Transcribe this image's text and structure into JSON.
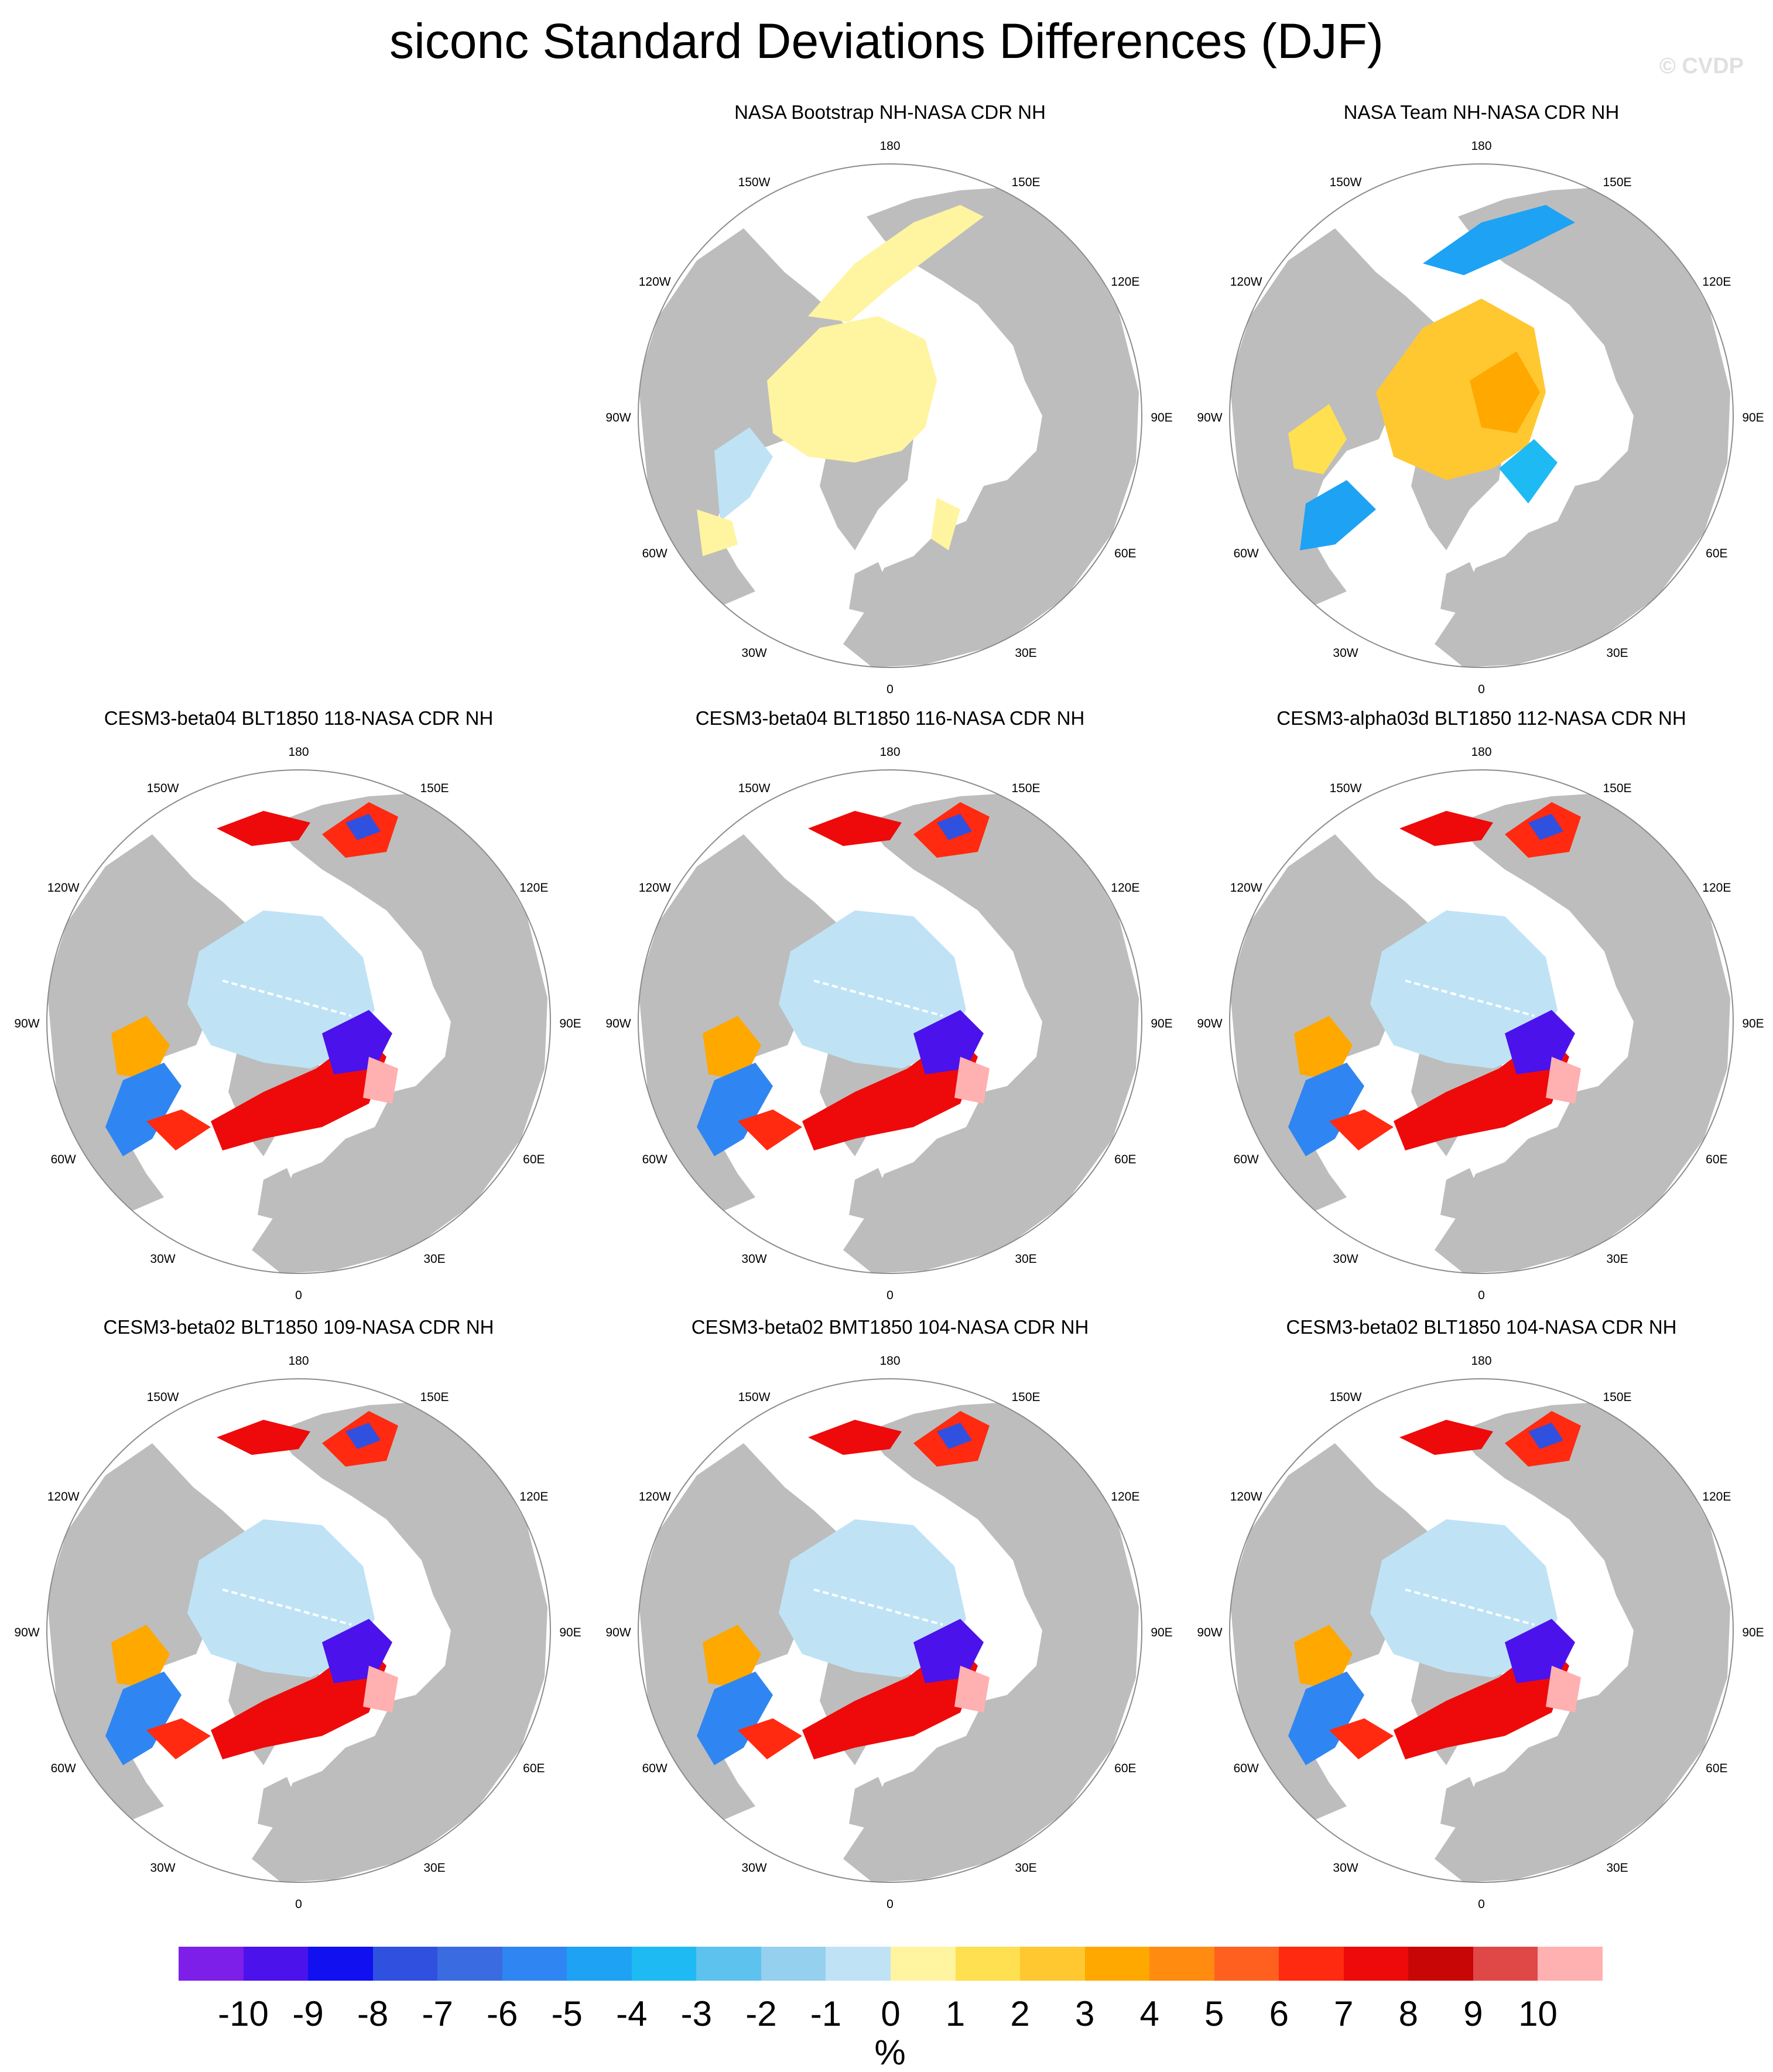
{
  "title": "siconc Standard Deviations Differences (DJF)",
  "watermark": "© CVDP",
  "colors": {
    "land": "#bdbdbd",
    "ocean": "#ffffff",
    "near_zero": "#bfe3f5",
    "pole_hole": "#ffffff"
  },
  "panels": [
    {
      "id": "p1",
      "title": "NASA Bootstrap NH-NASA CDR NH",
      "pattern": "obs-low"
    },
    {
      "id": "p2",
      "title": "NASA Team NH-NASA CDR NH",
      "pattern": "obs-high"
    },
    {
      "id": "p3",
      "title": "CESM3-beta04 BLT1850 118-NASA CDR NH",
      "pattern": "model"
    },
    {
      "id": "p4",
      "title": "CESM3-beta04 BLT1850 116-NASA CDR NH",
      "pattern": "model"
    },
    {
      "id": "p5",
      "title": "CESM3-alpha03d BLT1850 112-NASA CDR NH",
      "pattern": "model"
    },
    {
      "id": "p6",
      "title": "CESM3-beta02 BLT1850 109-NASA CDR NH",
      "pattern": "model"
    },
    {
      "id": "p7",
      "title": "CESM3-beta02 BMT1850 104-NASA CDR NH",
      "pattern": "model"
    },
    {
      "id": "p8",
      "title": "CESM3-beta02 BLT1850 104-NASA CDR NH",
      "pattern": "model"
    }
  ],
  "lon_labels": [
    "180",
    "150E",
    "120E",
    "90E",
    "60E",
    "30E",
    "0",
    "30W",
    "60W",
    "90W",
    "120W",
    "150W"
  ],
  "colorbar": {
    "units": "%",
    "labels": [
      "-10",
      "-9",
      "-8",
      "-7",
      "-6",
      "-5",
      "-4",
      "-3",
      "-2",
      "-1",
      "0",
      "1",
      "2",
      "3",
      "4",
      "5",
      "6",
      "7",
      "8",
      "9",
      "10"
    ],
    "colors": [
      "#7d1fe8",
      "#4b12ec",
      "#1010f0",
      "#3050e0",
      "#3a6be0",
      "#2f86f2",
      "#1ea2f4",
      "#1ebaf3",
      "#5ec2ee",
      "#95d0ee",
      "#bfe3f5",
      "#fff4a0",
      "#ffe050",
      "#ffc830",
      "#ffa800",
      "#ff8c10",
      "#ff6020",
      "#ff2a10",
      "#ee0a0a",
      "#c80606",
      "#e04848",
      "#ffb0b0"
    ]
  }
}
